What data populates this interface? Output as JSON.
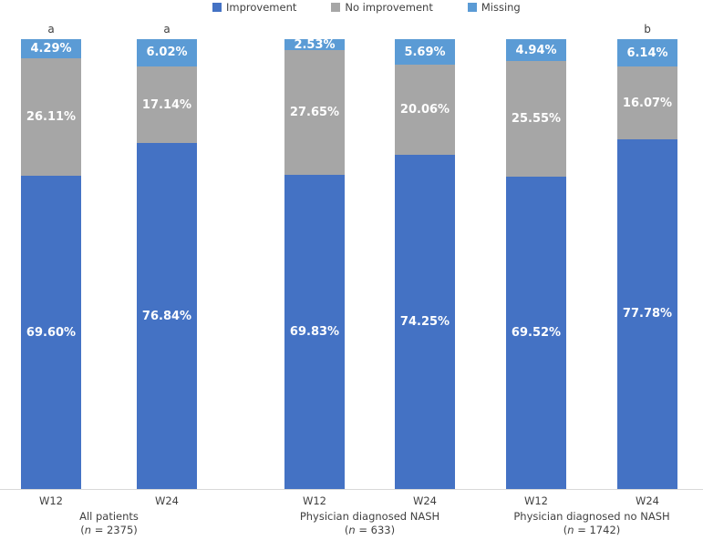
{
  "figure": {
    "background": "#ffffff",
    "axis_line_color": "#d9d9d9",
    "label_text_color": "#404040",
    "value_label_color": "#ffffff"
  },
  "chart_data": {
    "type": "bar",
    "stacked": true,
    "percent_stacked": true,
    "title": "",
    "xlabel": "",
    "ylabel": "",
    "ylim": [
      0,
      100
    ],
    "grid": false,
    "legend_position": "top",
    "legend": [
      {
        "label": "Improvement",
        "color": "#4472c4"
      },
      {
        "label": "No improvement",
        "color": "#a6a6a6"
      },
      {
        "label": "Missing",
        "color": "#5b9bd5"
      }
    ],
    "groups": [
      {
        "label": "All patients",
        "n": "2375",
        "bars": [
          {
            "x_label": "W12",
            "annotation": "a",
            "segments": [
              {
                "series": "Improvement",
                "value": 69.6,
                "label": "69.60%"
              },
              {
                "series": "No improvement",
                "value": 26.11,
                "label": "26.11%"
              },
              {
                "series": "Missing",
                "value": 4.29,
                "label": "4.29%"
              }
            ]
          },
          {
            "x_label": "W24",
            "annotation": "a",
            "segments": [
              {
                "series": "Improvement",
                "value": 76.84,
                "label": "76.84%"
              },
              {
                "series": "No improvement",
                "value": 17.14,
                "label": "17.14%"
              },
              {
                "series": "Missing",
                "value": 6.02,
                "label": "6.02%"
              }
            ]
          }
        ]
      },
      {
        "label": "Physician diagnosed NASH",
        "n": "633",
        "bars": [
          {
            "x_label": "W12",
            "annotation": "",
            "segments": [
              {
                "series": "Improvement",
                "value": 69.83,
                "label": "69.83%"
              },
              {
                "series": "No improvement",
                "value": 27.65,
                "label": "27.65%"
              },
              {
                "series": "Missing",
                "value": 2.53,
                "label": "2.53%"
              }
            ]
          },
          {
            "x_label": "W24",
            "annotation": "",
            "segments": [
              {
                "series": "Improvement",
                "value": 74.25,
                "label": "74.25%"
              },
              {
                "series": "No improvement",
                "value": 20.06,
                "label": "20.06%"
              },
              {
                "series": "Missing",
                "value": 5.69,
                "label": "5.69%"
              }
            ]
          }
        ]
      },
      {
        "label": "Physician diagnosed no NASH",
        "n": "1742",
        "bars": [
          {
            "x_label": "W12",
            "annotation": "",
            "segments": [
              {
                "series": "Improvement",
                "value": 69.52,
                "label": "69.52%"
              },
              {
                "series": "No improvement",
                "value": 25.55,
                "label": "25.55%"
              },
              {
                "series": "Missing",
                "value": 4.94,
                "label": "4.94%"
              }
            ]
          },
          {
            "x_label": "W24",
            "annotation": "b",
            "segments": [
              {
                "series": "Improvement",
                "value": 77.78,
                "label": "77.78%"
              },
              {
                "series": "No improvement",
                "value": 16.07,
                "label": "16.07%"
              },
              {
                "series": "Missing",
                "value": 6.14,
                "label": "6.14%"
              }
            ]
          }
        ]
      }
    ]
  }
}
